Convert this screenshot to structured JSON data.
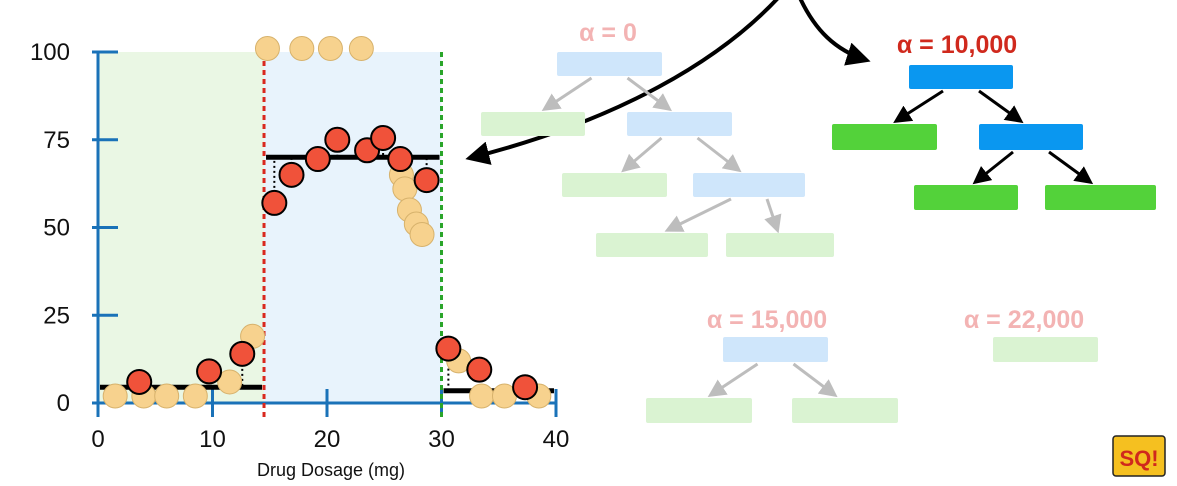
{
  "chart_data": {
    "type": "scatter",
    "xlabel": "Drug Dosage (mg)",
    "ylabel": "",
    "title": "",
    "xlim": [
      0,
      40
    ],
    "ylim": [
      0,
      100
    ],
    "x_ticks": [
      "0",
      "10",
      "20",
      "30",
      "40"
    ],
    "y_ticks": [
      "0",
      "25",
      "50",
      "75",
      "100"
    ],
    "grid": false,
    "regions": [
      {
        "x_range": [
          0,
          14.5
        ],
        "color": "#eaf7e4"
      },
      {
        "x_range": [
          14.5,
          30
        ],
        "color": "#e8f3fc"
      }
    ],
    "split_lines": [
      {
        "x": 14.5,
        "color": "#d9281e"
      },
      {
        "x": 30,
        "color": "#2aa52a"
      }
    ],
    "leaf_means": [
      {
        "x_range": [
          0,
          14.5
        ],
        "y": 4.5
      },
      {
        "x_range": [
          14.5,
          30
        ],
        "y": 70
      },
      {
        "x_range": [
          30,
          40
        ],
        "y": 3.5
      }
    ],
    "series": [
      {
        "role": "all observations",
        "color": "#f7d28e",
        "points": [
          {
            "x": 1.5,
            "y": 2
          },
          {
            "x": 4,
            "y": 2
          },
          {
            "x": 6,
            "y": 2
          },
          {
            "x": 8.5,
            "y": 2
          },
          {
            "x": 11.5,
            "y": 6
          },
          {
            "x": 13.5,
            "y": 19
          },
          {
            "x": 14.8,
            "y": 101
          },
          {
            "x": 17.8,
            "y": 101
          },
          {
            "x": 20.3,
            "y": 101
          },
          {
            "x": 23,
            "y": 101
          },
          {
            "x": 26.5,
            "y": 65
          },
          {
            "x": 26.8,
            "y": 61
          },
          {
            "x": 27.2,
            "y": 55
          },
          {
            "x": 27.8,
            "y": 51
          },
          {
            "x": 28.3,
            "y": 48
          },
          {
            "x": 31.5,
            "y": 12
          },
          {
            "x": 33.5,
            "y": 2
          },
          {
            "x": 35.5,
            "y": 2
          },
          {
            "x": 38.5,
            "y": 2
          }
        ]
      },
      {
        "role": "testing observations",
        "color": "#f0523a",
        "points": [
          {
            "x": 3.6,
            "y": 6
          },
          {
            "x": 9.7,
            "y": 9
          },
          {
            "x": 12.6,
            "y": 14
          },
          {
            "x": 15.4,
            "y": 57
          },
          {
            "x": 16.9,
            "y": 65
          },
          {
            "x": 19.2,
            "y": 69.5
          },
          {
            "x": 20.9,
            "y": 75
          },
          {
            "x": 23.5,
            "y": 72
          },
          {
            "x": 24.9,
            "y": 75.5
          },
          {
            "x": 26.4,
            "y": 69.5
          },
          {
            "x": 28.7,
            "y": 63.5
          },
          {
            "x": 30.6,
            "y": 15.5
          },
          {
            "x": 33.3,
            "y": 9.5
          },
          {
            "x": 37.3,
            "y": 4.5
          }
        ]
      }
    ]
  },
  "trees": [
    {
      "alpha_label": "α = 0",
      "faded": true,
      "title_color": "#f3b3b3",
      "nodes": [
        {
          "kind": "internal"
        },
        {
          "kind": "leaf"
        },
        {
          "kind": "internal"
        },
        {
          "kind": "leaf"
        },
        {
          "kind": "internal"
        },
        {
          "kind": "leaf"
        },
        {
          "kind": "leaf"
        }
      ]
    },
    {
      "alpha_label": "α = 10,000",
      "faded": false,
      "title_color": "#d0291d",
      "nodes": [
        {
          "kind": "internal"
        },
        {
          "kind": "leaf"
        },
        {
          "kind": "internal"
        },
        {
          "kind": "leaf"
        },
        {
          "kind": "leaf"
        }
      ]
    },
    {
      "alpha_label": "α = 15,000",
      "faded": true,
      "title_color": "#f3b3b3",
      "nodes": [
        {
          "kind": "internal"
        },
        {
          "kind": "leaf"
        },
        {
          "kind": "leaf"
        }
      ]
    },
    {
      "alpha_label": "α = 22,000",
      "faded": true,
      "title_color": "#f3b3b3",
      "nodes": [
        {
          "kind": "leaf"
        }
      ]
    }
  ],
  "colors": {
    "axis": "#1a72b8",
    "internal_node": "#0a97f0",
    "leaf_node": "#53d23a",
    "internal_node_faded": "#cfe6fb",
    "leaf_node_faded": "#daf3d2",
    "arrow": "#000000",
    "arrow_faded": "#bdbdbd"
  },
  "logo": {
    "text": "SQ!",
    "icon": "statquest-logo"
  }
}
